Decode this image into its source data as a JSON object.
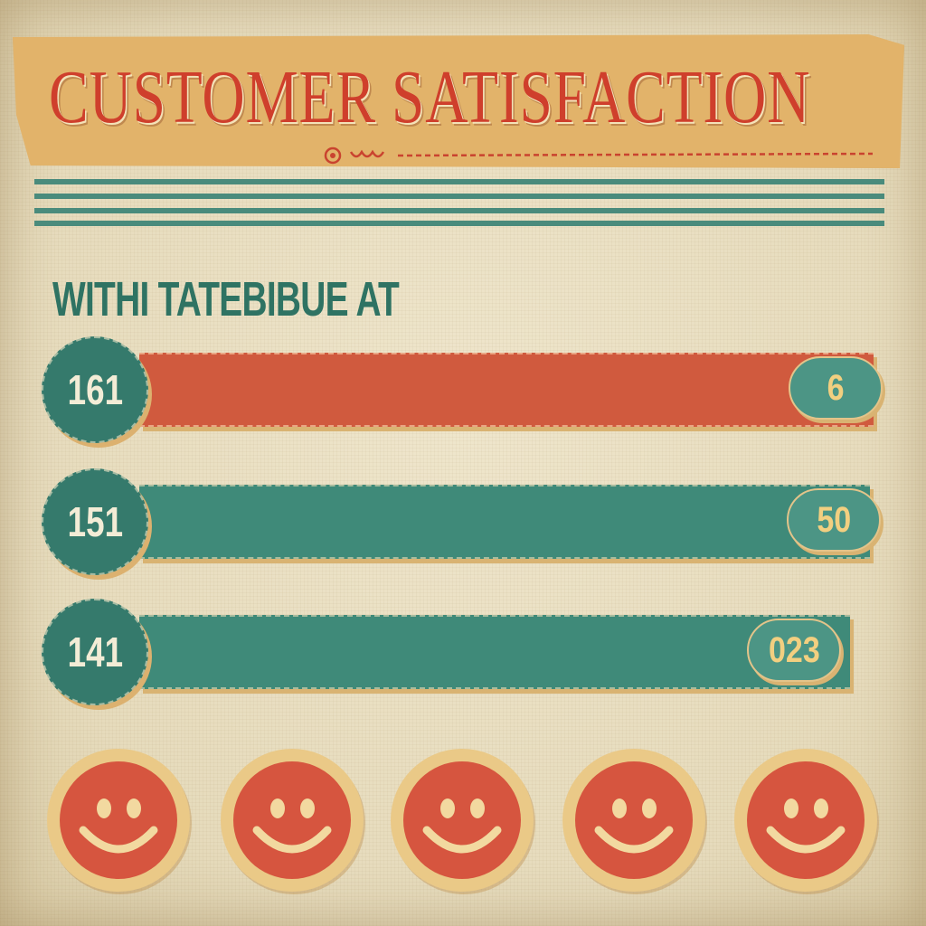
{
  "title": "CUSTOMER SATISFACTION",
  "subtitle": "WITHI TATEBIBUE AT",
  "rows": [
    {
      "badge": "161",
      "value": "6",
      "color": "red"
    },
    {
      "badge": "151",
      "value": "50",
      "color": "teal"
    },
    {
      "badge": "141",
      "value": "023",
      "color": "teal"
    }
  ],
  "smileys": [
    "smiley",
    "smiley",
    "smiley",
    "smiley",
    "smiley"
  ],
  "colors": {
    "banner": "#e2b36a",
    "title": "#cf3f2c",
    "teal": "#3f8a79",
    "red": "#d05a3e",
    "background": "#e9dfc2"
  }
}
